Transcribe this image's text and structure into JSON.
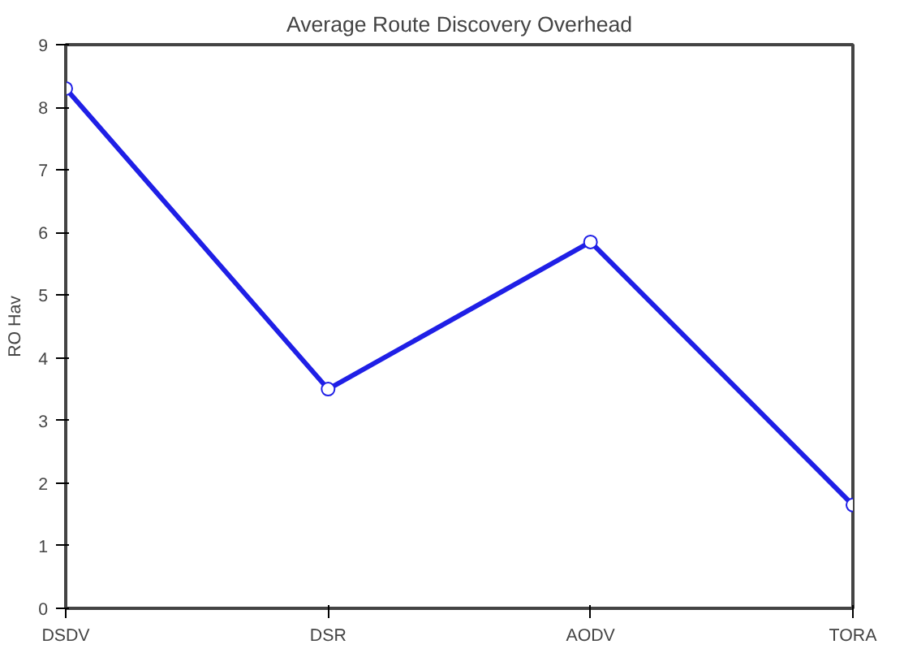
{
  "chart_data": {
    "type": "line",
    "title": "Average Route Discovery Overhead",
    "ylabel": "RO Hav",
    "categories": [
      "DSDV",
      "DSR",
      "AODV",
      "TORA"
    ],
    "series": [
      {
        "color": "#1f1fe6",
        "values": [
          8.3,
          3.5,
          5.85,
          1.65
        ]
      }
    ],
    "ylim": [
      0,
      9
    ],
    "yticks": [
      0,
      1,
      2,
      3,
      4,
      5,
      6,
      7,
      8,
      9
    ],
    "grid": false,
    "marker": "circle",
    "line_style": "solid"
  }
}
